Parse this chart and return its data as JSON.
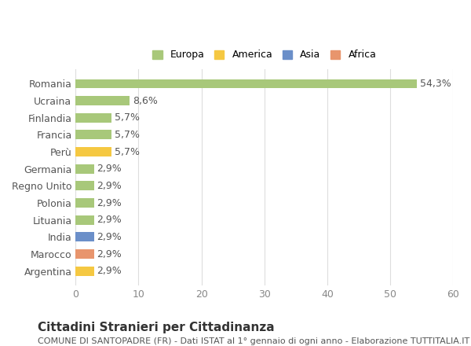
{
  "categories": [
    "Romania",
    "Ucraina",
    "Finlandia",
    "Francia",
    "Perù",
    "Germania",
    "Regno Unito",
    "Polonia",
    "Lituania",
    "India",
    "Marocco",
    "Argentina"
  ],
  "values": [
    54.3,
    8.6,
    5.7,
    5.7,
    5.7,
    2.9,
    2.9,
    2.9,
    2.9,
    2.9,
    2.9,
    2.9
  ],
  "labels": [
    "54,3%",
    "8,6%",
    "5,7%",
    "5,7%",
    "5,7%",
    "2,9%",
    "2,9%",
    "2,9%",
    "2,9%",
    "2,9%",
    "2,9%",
    "2,9%"
  ],
  "colors": [
    "#a8c87a",
    "#a8c87a",
    "#a8c87a",
    "#a8c87a",
    "#f5c842",
    "#a8c87a",
    "#a8c87a",
    "#a8c87a",
    "#a8c87a",
    "#6b8fc9",
    "#e8956d",
    "#f5c842"
  ],
  "legend_labels": [
    "Europa",
    "America",
    "Asia",
    "Africa"
  ],
  "legend_colors": [
    "#a8c87a",
    "#f5c842",
    "#6b8fc9",
    "#e8956d"
  ],
  "xlim": [
    0,
    60
  ],
  "xticks": [
    0,
    10,
    20,
    30,
    40,
    50,
    60
  ],
  "title": "Cittadini Stranieri per Cittadinanza",
  "subtitle": "COMUNE DI SANTOPADRE (FR) - Dati ISTAT al 1° gennaio di ogni anno - Elaborazione TUTTITALIA.IT",
  "background_color": "#ffffff",
  "grid_color": "#dddddd",
  "bar_height": 0.55,
  "label_fontsize": 9,
  "tick_fontsize": 9,
  "title_fontsize": 11,
  "subtitle_fontsize": 8
}
